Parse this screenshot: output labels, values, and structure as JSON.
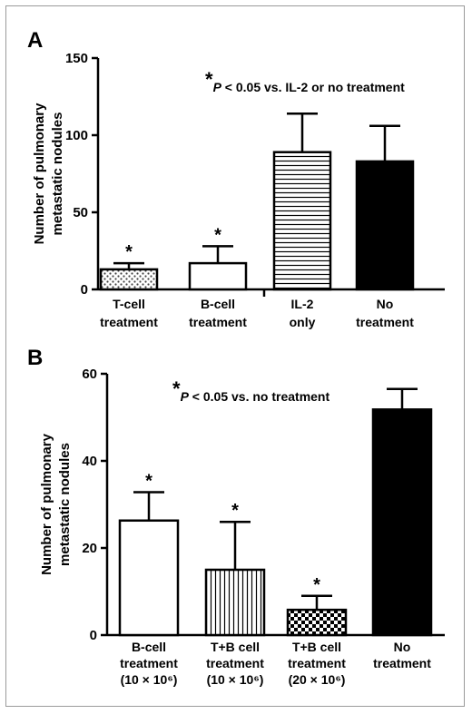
{
  "chart_data": [
    {
      "panel": "A",
      "type": "bar",
      "ylabel": [
        "Number of pulmonary",
        "metastatic nodules"
      ],
      "ylim": [
        0,
        150
      ],
      "yticks": [
        "0",
        "50",
        "100",
        "150"
      ],
      "annotation": {
        "star": "*",
        "text": "P < 0.05 vs. IL-2 or no treatment"
      },
      "categories": [
        {
          "lines": [
            "T-cell",
            "treatment"
          ]
        },
        {
          "lines": [
            "B-cell",
            "treatment"
          ]
        },
        {
          "lines": [
            "IL-2",
            "only"
          ]
        },
        {
          "lines": [
            "No",
            "treatment"
          ]
        }
      ],
      "values": [
        13,
        17,
        89,
        83
      ],
      "errors": [
        4,
        11,
        25,
        23
      ],
      "significant": [
        true,
        true,
        false,
        false
      ],
      "fills": [
        "dots",
        "white",
        "hlines",
        "black"
      ]
    },
    {
      "panel": "B",
      "type": "bar",
      "ylabel": [
        "Number of pulmonary",
        "metastatic nodules"
      ],
      "ylim": [
        0,
        60
      ],
      "yticks": [
        "0",
        "20",
        "40",
        "60"
      ],
      "annotation": {
        "star": "*",
        "text": "P < 0.05 vs. no treatment"
      },
      "categories": [
        {
          "lines": [
            "B-cell",
            "treatment",
            "(10 × 10⁶)"
          ]
        },
        {
          "lines": [
            "T+B cell",
            "treatment",
            "(10 × 10⁶)"
          ]
        },
        {
          "lines": [
            "T+B cell",
            "treatment",
            "(20 × 10⁶)"
          ]
        },
        {
          "lines": [
            "No",
            "treatment"
          ]
        }
      ],
      "values": [
        26.3,
        15,
        5.8,
        51.8
      ],
      "errors": [
        6.5,
        11,
        3.2,
        4.7
      ],
      "significant": [
        true,
        true,
        true,
        false
      ],
      "fills": [
        "white",
        "vlines",
        "checker",
        "black"
      ]
    }
  ]
}
